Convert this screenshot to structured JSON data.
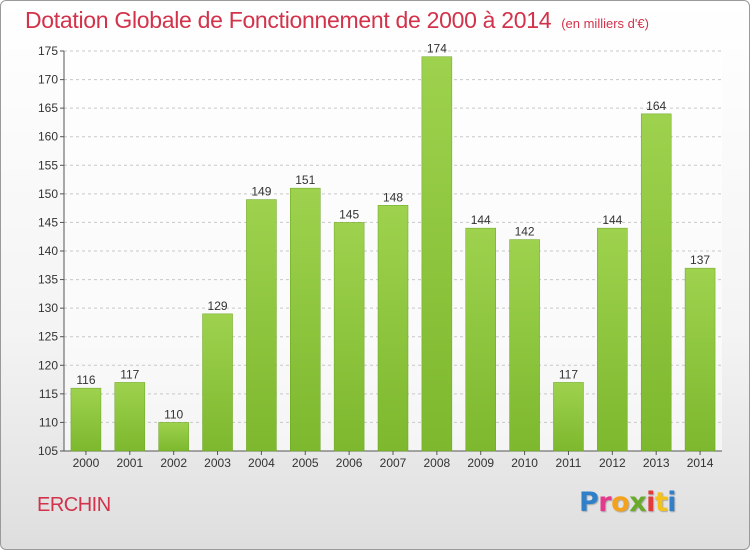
{
  "chart_data": {
    "type": "bar",
    "title": "Dotation Globale de Fonctionnement de 2000 à 2014",
    "subtitle": "(en milliers d'€)",
    "categories": [
      "2000",
      "2001",
      "2002",
      "2003",
      "2004",
      "2005",
      "2006",
      "2007",
      "2008",
      "2009",
      "2010",
      "2011",
      "2012",
      "2013",
      "2014"
    ],
    "values": [
      116,
      117,
      110,
      129,
      149,
      151,
      145,
      148,
      174,
      144,
      142,
      117,
      144,
      164,
      137
    ],
    "ylim": [
      105,
      175
    ],
    "yticks": [
      105,
      110,
      115,
      120,
      125,
      130,
      135,
      140,
      145,
      150,
      155,
      160,
      165,
      170,
      175
    ],
    "grid": true,
    "bar_color": "#7db82e",
    "bar_color_top": "#9ed24e",
    "label_color": "#333333"
  },
  "place_name": "ERCHIN",
  "logo": {
    "letters": [
      "P",
      "r",
      "o",
      "x",
      "i",
      "t",
      "i"
    ],
    "colors": [
      "#2f80c8",
      "#e23b8c",
      "#f4a21b",
      "#6aaa2a",
      "#e23b3b",
      "#f4c21b",
      "#2f80c8"
    ]
  }
}
